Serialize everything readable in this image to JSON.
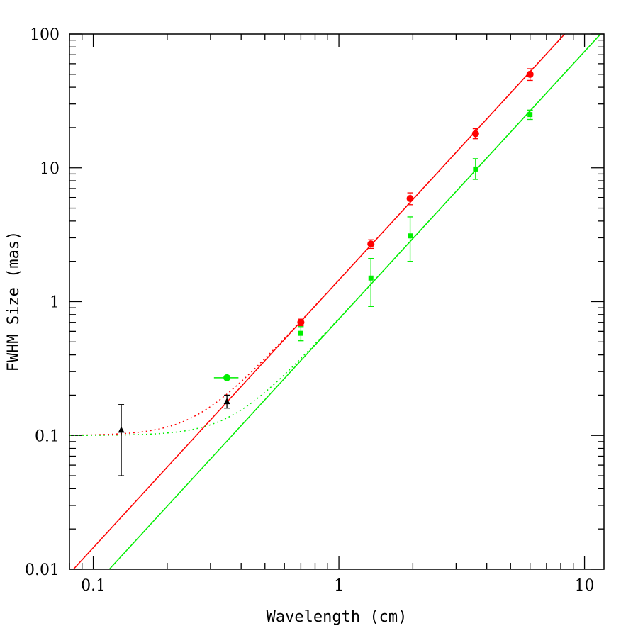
{
  "chart_data": {
    "type": "scatter",
    "title": "",
    "xlabel": "Wavelength (cm)",
    "ylabel": "FWHM Size (mas)",
    "xscale": "log",
    "yscale": "log",
    "xlim": [
      0.08,
      12
    ],
    "ylim": [
      0.01,
      100
    ],
    "grid": false,
    "x_tick_labels": [
      {
        "value": 0.1,
        "label": "0.1"
      },
      {
        "value": 1,
        "label": "1"
      },
      {
        "value": 10,
        "label": "10"
      }
    ],
    "y_tick_labels": [
      {
        "value": 0.01,
        "label": "0.01"
      },
      {
        "value": 0.1,
        "label": "0.1"
      },
      {
        "value": 1,
        "label": "1"
      },
      {
        "value": 10,
        "label": "10"
      },
      {
        "value": 100,
        "label": "100"
      }
    ],
    "series": [
      {
        "color": "#ff0000",
        "marker": "circle",
        "points": [
          {
            "x": 0.7,
            "y": 0.7,
            "ylo": 0.66,
            "yhi": 0.74
          },
          {
            "x": 1.35,
            "y": 2.7,
            "ylo": 2.5,
            "yhi": 2.9
          },
          {
            "x": 1.95,
            "y": 5.9,
            "ylo": 5.3,
            "yhi": 6.5
          },
          {
            "x": 3.6,
            "y": 18.0,
            "ylo": 16.5,
            "yhi": 19.6
          },
          {
            "x": 6.0,
            "y": 50.0,
            "ylo": 45.0,
            "yhi": 55.0
          }
        ]
      },
      {
        "color": "#00ee00",
        "marker": "square",
        "points": [
          {
            "x": 0.7,
            "y": 0.58,
            "ylo": 0.51,
            "yhi": 0.65
          },
          {
            "x": 1.35,
            "y": 1.5,
            "ylo": 0.92,
            "yhi": 2.1
          },
          {
            "x": 1.95,
            "y": 3.1,
            "ylo": 2.0,
            "yhi": 4.3
          },
          {
            "x": 3.6,
            "y": 9.8,
            "ylo": 8.2,
            "yhi": 11.7
          },
          {
            "x": 6.0,
            "y": 25.0,
            "ylo": 23.0,
            "yhi": 27.0
          }
        ]
      },
      {
        "color": "#00ee00",
        "marker": "circle",
        "points": [
          {
            "x": 0.35,
            "y": 0.27,
            "xlo": 0.31,
            "xhi": 0.39
          }
        ]
      },
      {
        "color": "#000000",
        "marker": "triangle",
        "points": [
          {
            "x": 0.13,
            "y": 0.11,
            "ylo": 0.05,
            "yhi": 0.17
          },
          {
            "x": 0.35,
            "y": 0.18,
            "ylo": 0.16,
            "yhi": 0.2
          }
        ]
      }
    ],
    "fit_lines": [
      {
        "color": "#ff0000",
        "style": "solid",
        "A": 1.45,
        "p": 2.0
      },
      {
        "color": "#00ee00",
        "style": "solid",
        "A": 0.74,
        "p": 2.0
      },
      {
        "color": "#ff0000",
        "style": "dotted",
        "A": 1.45,
        "p": 2.0,
        "c": 0.1
      },
      {
        "color": "#00ee00",
        "style": "dotted",
        "A": 0.74,
        "p": 2.0,
        "c": 0.1
      }
    ]
  }
}
